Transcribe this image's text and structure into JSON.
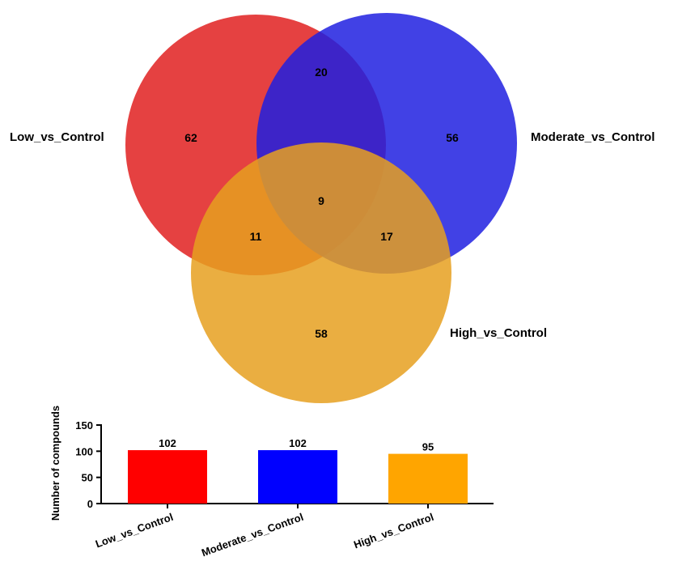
{
  "chart_data": [
    {
      "type": "venn",
      "sets": [
        {
          "name": "Low_vs_Control",
          "color": "#e02020"
        },
        {
          "name": "Moderate_vs_Control",
          "color": "#2020e0"
        },
        {
          "name": "High_vs_Control",
          "color": "#e6a020"
        }
      ],
      "regions": {
        "low_only": "62",
        "moderate_only": "56",
        "high_only": "58",
        "low_moderate": "20",
        "low_high": "11",
        "moderate_high": "17",
        "all_three": "9"
      }
    },
    {
      "type": "bar",
      "categories": [
        "Low_vs_Control",
        "Moderate_vs_Control",
        "High_vs_Control"
      ],
      "values": [
        102,
        102,
        95
      ],
      "colors": [
        "#ff0000",
        "#0000ff",
        "#ffa500"
      ],
      "ylabel": "Number of compounds",
      "yticks": [
        0,
        50,
        100,
        150
      ],
      "ylim": [
        0,
        150
      ]
    }
  ]
}
